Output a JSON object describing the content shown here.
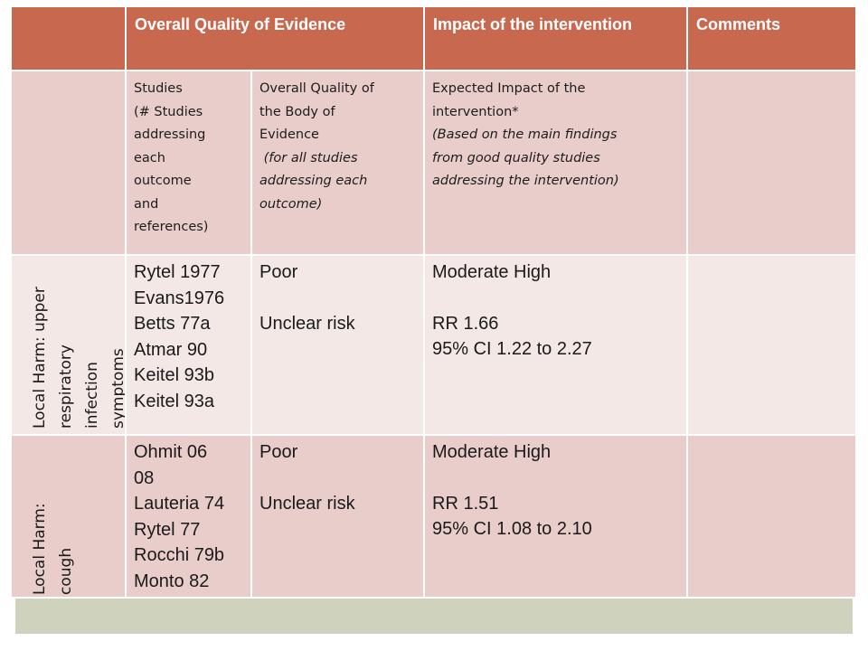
{
  "header": {
    "col1": "Overall Quality of Evidence",
    "col2": "Impact of the intervention",
    "col3": "Comments"
  },
  "subheader": {
    "studies": [
      "Studies",
      "(# Studies",
      "addressing",
      "each",
      "outcome",
      "and",
      "references)"
    ],
    "quality": [
      "Overall Quality of",
      "the Body of",
      "Evidence"
    ],
    "quality_note": [
      " (for all studies",
      "addressing each",
      "outcome)"
    ],
    "impact": [
      "Expected Impact of the",
      "intervention*"
    ],
    "impact_note": [
      "(Based on the main findings",
      "from good quality studies",
      "addressing the intervention)"
    ]
  },
  "rows": [
    {
      "outcome": [
        "Local Harm: upper",
        "respiratory",
        "infection",
        "symptoms"
      ],
      "studies": [
        "Rytel 1977",
        "Evans1976",
        "Betts 77a",
        "Atmar 90",
        "Keitel 93b",
        "Keitel 93a"
      ],
      "quality": "Poor",
      "risk": "Unclear risk",
      "impact": "Moderate High",
      "rr": "RR 1.66",
      "ci": "95% CI 1.22 to 2.27",
      "comments": ""
    },
    {
      "outcome": [
        "Local Harm:",
        "cough"
      ],
      "studies": [
        "Ohmit 06",
        "08",
        "Lauteria 74",
        "Rytel 77",
        "Rocchi 79b",
        "Monto 82"
      ],
      "quality": "Poor",
      "risk": "Unclear risk",
      "impact": "Moderate High",
      "rr": "RR 1.51",
      "ci": "95% CI 1.08 to 2.10",
      "comments": ""
    }
  ]
}
